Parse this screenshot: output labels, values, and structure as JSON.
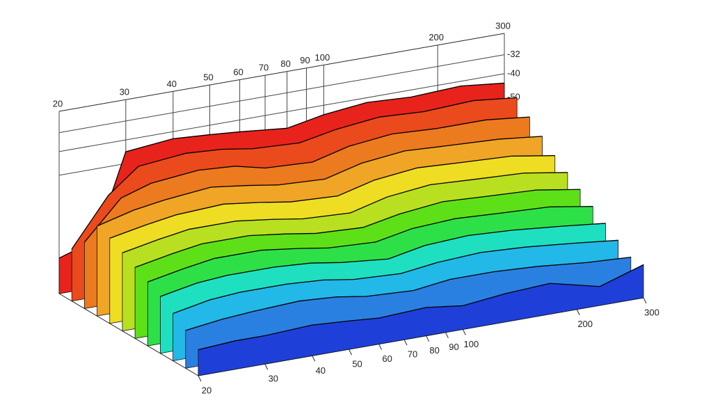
{
  "chart_data": {
    "type": "waterfall",
    "x": [
      20,
      25,
      30,
      40,
      50,
      60,
      80,
      100,
      130,
      170,
      230,
      300
    ],
    "xlim": [
      20,
      300
    ],
    "xscale": "log",
    "xticks": [
      20,
      30,
      40,
      50,
      60,
      70,
      80,
      90,
      100,
      200,
      300
    ],
    "ylim": [
      -100,
      -23
    ],
    "yticks": [
      -32,
      -40,
      -50
    ],
    "grid": true,
    "series": [
      {
        "color": "#e8231c",
        "values": [
          -85,
          -80,
          -45,
          -43,
          -44,
          -45,
          -47,
          -44,
          -42,
          -43,
          -42,
          -44
        ]
      },
      {
        "color": "#ea4a1c",
        "values": [
          -78,
          -58,
          -48,
          -46,
          -47,
          -49,
          -50,
          -47,
          -45,
          -46,
          -45,
          -47
        ]
      },
      {
        "color": "#ec7a1e",
        "values": [
          -72,
          -56,
          -52,
          -50,
          -51,
          -54,
          -55,
          -51,
          -49,
          -50,
          -50,
          -52
        ]
      },
      {
        "color": "#f0a526",
        "values": [
          -62,
          -58,
          -56,
          -54,
          -56,
          -58,
          -59,
          -55,
          -53,
          -54,
          -55,
          -57
        ]
      },
      {
        "color": "#eedd22",
        "values": [
          -64,
          -61,
          -59,
          -58,
          -60,
          -62,
          -63,
          -59,
          -57,
          -58,
          -59,
          -62
        ]
      },
      {
        "color": "#b8e020",
        "values": [
          -67,
          -64,
          -62,
          -62,
          -64,
          -66,
          -67,
          -63,
          -61,
          -62,
          -63,
          -66
        ]
      },
      {
        "color": "#5ee018",
        "values": [
          -70,
          -67,
          -65,
          -65,
          -67,
          -69,
          -70,
          -67,
          -65,
          -66,
          -67,
          -70
        ]
      },
      {
        "color": "#2ee048",
        "values": [
          -73,
          -70,
          -68,
          -68,
          -70,
          -72,
          -73,
          -70,
          -69,
          -70,
          -71,
          -74
        ]
      },
      {
        "color": "#1ee0c0",
        "values": [
          -76,
          -73,
          -72,
          -72,
          -73,
          -75,
          -77,
          -74,
          -73,
          -74,
          -76,
          -78
        ]
      },
      {
        "color": "#22b8e8",
        "values": [
          -80,
          -77,
          -76,
          -76,
          -77,
          -79,
          -80,
          -78,
          -77,
          -78,
          -80,
          -82
        ]
      },
      {
        "color": "#2a80e0",
        "values": [
          -84,
          -82,
          -81,
          -80,
          -81,
          -83,
          -84,
          -82,
          -82,
          -83,
          -85,
          -86
        ]
      },
      {
        "color": "#1e40d8",
        "values": [
          -89,
          -88,
          -88,
          -87,
          -88,
          -89,
          -88,
          -90,
          -88,
          -87,
          -92,
          -86
        ]
      }
    ]
  }
}
